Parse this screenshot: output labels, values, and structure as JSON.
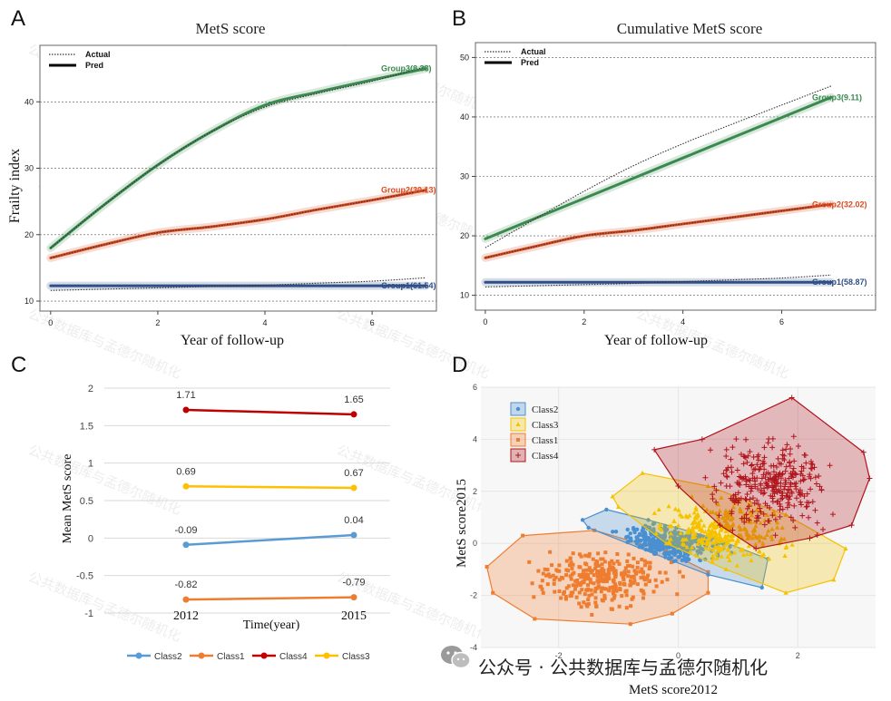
{
  "panels": {
    "a": "A",
    "b": "B",
    "c": "C",
    "d": "D"
  },
  "chart_data": [
    {
      "type": "line",
      "title": "MetS score",
      "xlabel": "Year of follow-up",
      "ylabel": "Frailty index",
      "xlim": [
        -0.2,
        7.2
      ],
      "ylim": [
        8.5,
        48.5
      ],
      "xticks": [
        "0",
        "2",
        "4",
        "6"
      ],
      "yticks": [
        "10",
        "20",
        "30",
        "40"
      ],
      "legend": [
        "Actual",
        "Pred"
      ],
      "legend_position": "top-left",
      "series": [
        {
          "name": "Group3(8.33)",
          "color": "#3a8a4f",
          "x": [
            0,
            1,
            2,
            3,
            4,
            5,
            6,
            7
          ],
          "pred": [
            18.0,
            24.5,
            30.5,
            35.5,
            39.5,
            41.5,
            43.3,
            45.0
          ],
          "actual": [
            18.0,
            24.5,
            30.5,
            35.5,
            39.2,
            41.3,
            43.1,
            45.3
          ]
        },
        {
          "name": "Group2(30.13)",
          "color": "#d94a1e",
          "x": [
            0,
            1,
            2,
            3,
            4,
            5,
            6,
            7
          ],
          "pred": [
            16.5,
            18.5,
            20.3,
            21.2,
            22.3,
            23.8,
            25.2,
            26.7
          ],
          "actual": [
            16.5,
            18.5,
            20.3,
            21.2,
            22.3,
            23.8,
            25.2,
            26.7
          ]
        },
        {
          "name": "Group1(61.54)",
          "color": "#2f4f86",
          "x": [
            0,
            1,
            2,
            3,
            4,
            5,
            6,
            7
          ],
          "pred": [
            12.3,
            12.3,
            12.3,
            12.3,
            12.3,
            12.3,
            12.3,
            12.3
          ],
          "actual": [
            11.6,
            11.8,
            12.0,
            12.2,
            12.4,
            12.7,
            13.0,
            13.5
          ]
        }
      ]
    },
    {
      "type": "line",
      "title": "Cumulative MetS score",
      "xlabel": "Year of follow-up",
      "ylabel": "",
      "xlim": [
        -0.2,
        7.9
      ],
      "ylim": [
        7.5,
        52.5
      ],
      "xticks": [
        "0",
        "2",
        "4",
        "6"
      ],
      "yticks": [
        "10",
        "20",
        "30",
        "40",
        "50"
      ],
      "legend": [
        "Actual",
        "Pred"
      ],
      "legend_position": "top-left",
      "series": [
        {
          "name": "Group3(9.11)",
          "color": "#3a8a4f",
          "x": [
            0,
            1,
            2,
            3,
            4,
            5,
            6,
            7
          ],
          "pred": [
            19.5,
            22.9,
            26.3,
            29.7,
            33.1,
            36.5,
            39.9,
            43.3
          ],
          "actual": [
            18.0,
            22.8,
            27.5,
            31.8,
            35.5,
            38.8,
            42.0,
            45.2
          ]
        },
        {
          "name": "Group2(32.02)",
          "color": "#d94a1e",
          "x": [
            0,
            1,
            2,
            3,
            4,
            5,
            6,
            7
          ],
          "pred": [
            16.3,
            18.2,
            20.0,
            20.9,
            22.0,
            23.1,
            24.2,
            25.3
          ],
          "actual": [
            16.3,
            18.2,
            20.0,
            20.9,
            22.0,
            23.1,
            24.2,
            25.3
          ]
        },
        {
          "name": "Group1(58.87)",
          "color": "#2f4f86",
          "x": [
            0,
            1,
            2,
            3,
            4,
            5,
            6,
            7
          ],
          "pred": [
            12.2,
            12.2,
            12.2,
            12.2,
            12.2,
            12.2,
            12.2,
            12.2
          ],
          "actual": [
            11.4,
            11.6,
            11.8,
            12.0,
            12.3,
            12.6,
            12.9,
            13.4
          ]
        }
      ]
    },
    {
      "type": "line",
      "title": "",
      "xlabel": "Time(year)",
      "ylabel": "Mean MetS score",
      "categories": [
        "2012",
        "2015"
      ],
      "ylim": [
        -1,
        2
      ],
      "yticks": [
        "2",
        "1.5",
        "1",
        "0.5",
        "0",
        "-0.5",
        "-1"
      ],
      "legend_position": "bottom",
      "series": [
        {
          "name": "Class2",
          "color": "#5b9bd5",
          "values": [
            -0.09,
            0.04
          ],
          "labels": [
            "-0.09",
            "0.04"
          ]
        },
        {
          "name": "Class1",
          "color": "#ed7d31",
          "values": [
            -0.82,
            -0.79
          ],
          "labels": [
            "-0.82",
            "-0.79"
          ]
        },
        {
          "name": "Class4",
          "color": "#c00000",
          "values": [
            1.71,
            1.65
          ],
          "labels": [
            "1.71",
            "1.65"
          ]
        },
        {
          "name": "Class3",
          "color": "#ffc000",
          "values": [
            0.69,
            0.67
          ],
          "labels": [
            "0.69",
            "0.67"
          ]
        }
      ]
    },
    {
      "type": "scatter",
      "title": "",
      "xlabel": "MetS score2012",
      "ylabel": "MetS score2015",
      "xlim": [
        -3.3,
        3.3
      ],
      "ylim": [
        -4,
        6
      ],
      "xticks": [
        "-2",
        "0",
        "2"
      ],
      "yticks": [
        "6",
        "4",
        "2",
        "0",
        "-2",
        "-4"
      ],
      "legend_position": "top-left",
      "series": [
        {
          "name": "Class2",
          "color": "#4a90d0",
          "marker": "circle",
          "hull": [
            [
              -1.2,
              1.3
            ],
            [
              -0.5,
              0.9
            ],
            [
              0.6,
              0.2
            ],
            [
              1.5,
              -0.6
            ],
            [
              1.4,
              -1.7
            ],
            [
              0.5,
              -1.2
            ],
            [
              -0.4,
              -0.4
            ],
            [
              -1.5,
              0.6
            ],
            [
              -1.6,
              0.9
            ]
          ]
        },
        {
          "name": "Class3",
          "color": "#f5c200",
          "marker": "triangle",
          "hull": [
            [
              -0.6,
              2.7
            ],
            [
              0.5,
              2.2
            ],
            [
              1.8,
              1.1
            ],
            [
              2.8,
              -0.2
            ],
            [
              2.6,
              -1.4
            ],
            [
              1.8,
              -1.9
            ],
            [
              0.8,
              -1.0
            ],
            [
              -0.2,
              0.0
            ],
            [
              -1.0,
              1.4
            ],
            [
              -1.1,
              1.8
            ]
          ]
        },
        {
          "name": "Class1",
          "color": "#ef7d30",
          "marker": "square",
          "hull": [
            [
              -2.6,
              0.3
            ],
            [
              -1.4,
              0.5
            ],
            [
              -0.2,
              -0.3
            ],
            [
              0.5,
              -1.1
            ],
            [
              0.5,
              -1.9
            ],
            [
              -0.1,
              -2.7
            ],
            [
              -0.8,
              -3.1
            ],
            [
              -2.4,
              -2.9
            ],
            [
              -3.1,
              -1.9
            ],
            [
              -3.2,
              -0.9
            ]
          ]
        },
        {
          "name": "Class4",
          "color": "#b0141c",
          "marker": "plus",
          "hull": [
            [
              -0.4,
              3.6
            ],
            [
              0.4,
              4.0
            ],
            [
              1.9,
              5.6
            ],
            [
              3.1,
              3.5
            ],
            [
              3.2,
              2.5
            ],
            [
              2.9,
              0.7
            ],
            [
              2.2,
              0.2
            ],
            [
              1.3,
              -0.2
            ],
            [
              0.7,
              0.7
            ],
            [
              0.0,
              2.2
            ]
          ]
        }
      ]
    }
  ],
  "footer": {
    "icon": "wechat-icon",
    "text": "公众号 · 公共数据库与孟德尔随机化"
  },
  "watermark": "公共数据库与孟德尔随机化"
}
